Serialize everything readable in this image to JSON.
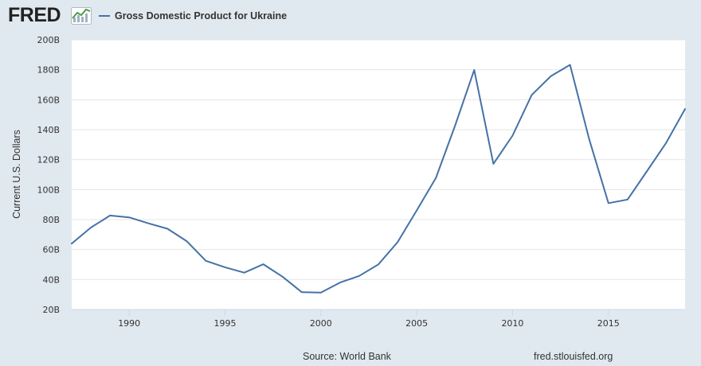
{
  "brand": {
    "logo_text": "FRED"
  },
  "colors": {
    "line": "#4572a7",
    "background": "#e1e9f0",
    "plot": "#ffffff",
    "grid": "#e6e6e6"
  },
  "chart_data": {
    "type": "line",
    "title": "Gross Domestic Product for Ukraine",
    "xlabel": "",
    "ylabel": "Current U.S. Dollars",
    "xlim": [
      1987,
      2019
    ],
    "ylim": [
      20,
      200
    ],
    "grid": true,
    "legend": "top-left",
    "x_ticks": [
      1990,
      1995,
      2000,
      2005,
      2010,
      2015
    ],
    "y_ticks": [
      20,
      40,
      60,
      80,
      100,
      120,
      140,
      160,
      180,
      200
    ],
    "y_tick_labels": [
      "20B",
      "40B",
      "60B",
      "80B",
      "100B",
      "120B",
      "140B",
      "160B",
      "180B",
      "200B"
    ],
    "series": [
      {
        "name": "Gross Domestic Product for Ukraine",
        "x": [
          1987,
          1988,
          1989,
          1990,
          1991,
          1992,
          1993,
          1994,
          1995,
          1996,
          1997,
          1998,
          1999,
          2000,
          2001,
          2002,
          2003,
          2004,
          2005,
          2006,
          2007,
          2008,
          2009,
          2010,
          2011,
          2012,
          2013,
          2014,
          2015,
          2016,
          2017,
          2018,
          2019
        ],
        "values": [
          64.0,
          74.7,
          82.7,
          81.5,
          77.5,
          73.9,
          65.6,
          52.5,
          48.2,
          44.6,
          50.2,
          41.9,
          31.6,
          31.3,
          38.0,
          42.4,
          50.1,
          64.9,
          86.1,
          107.8,
          142.7,
          179.9,
          117.2,
          136.0,
          163.2,
          175.8,
          183.3,
          133.5,
          91.0,
          93.4,
          112.1,
          130.9,
          153.8
        ]
      }
    ]
  },
  "footer": {
    "source": "Source: World Bank",
    "url": "fred.stlouisfed.org"
  }
}
